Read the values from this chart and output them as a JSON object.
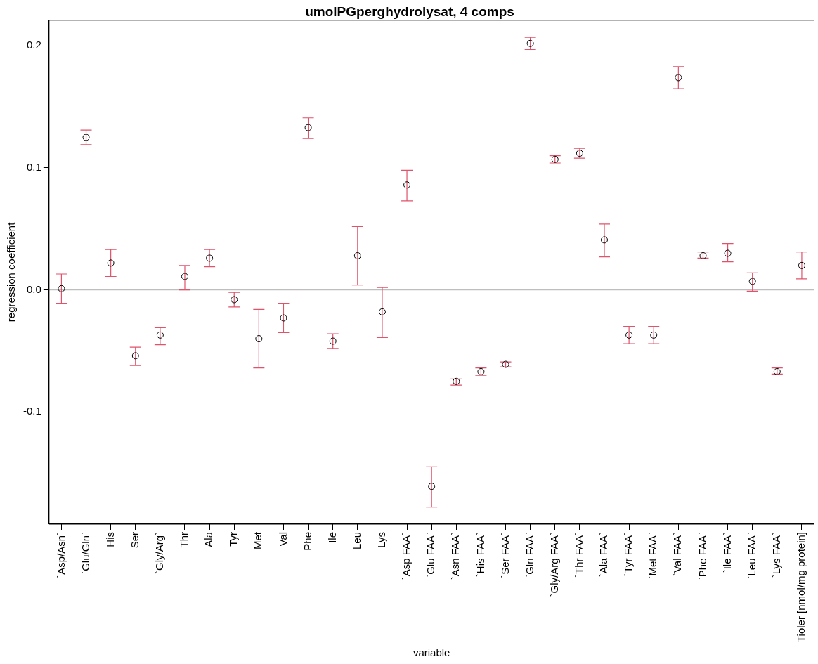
{
  "chart_data": {
    "type": "scatter",
    "title": "umolPGperghydrolysat, 4 comps",
    "xlabel": "variable",
    "ylabel": "regression coefficient",
    "categories": [
      "`Asp/Asn`",
      "`Glu/Gln`",
      "His",
      "Ser",
      "`Gly/Arg`",
      "Thr",
      "Ala",
      "Tyr",
      "Met",
      "Val",
      "Phe",
      "Ile",
      "Leu",
      "Lys",
      "`Asp FAA`",
      "`Glu FAA`",
      "`Asn FAA`",
      "`His FAA`",
      "`Ser FAA`",
      "`Gln FAA`",
      "`Gly/Arg FAA`",
      "`Thr FAA`",
      "`Ala FAA`",
      "`Tyr FAA`",
      "`Met FAA`",
      "`Val FAA`",
      "`Phe FAA`",
      "`Ile FAA`",
      "`Leu FAA`",
      "`Lys FAA`",
      "Tioler [nmol/mg protein]"
    ],
    "series": [
      {
        "color": "#000000",
        "values": [
          0.001,
          0.125,
          0.022,
          -0.054,
          -0.037,
          0.011,
          0.026,
          -0.008,
          -0.04,
          -0.023,
          0.133,
          -0.042,
          0.028,
          -0.018,
          0.086,
          -0.161,
          -0.075,
          -0.067,
          -0.061,
          0.202,
          0.107,
          0.112,
          0.041,
          -0.037,
          -0.037,
          0.174,
          0.028,
          0.03,
          0.007,
          -0.067,
          0.02
        ],
        "errors": [
          [
            -0.011,
            0.013
          ],
          [
            0.119,
            0.131
          ],
          [
            0.011,
            0.033
          ],
          [
            -0.062,
            -0.047
          ],
          [
            -0.045,
            -0.031
          ],
          [
            0.0,
            0.02
          ],
          [
            0.019,
            0.033
          ],
          [
            -0.014,
            -0.002
          ],
          [
            -0.064,
            -0.016
          ],
          [
            -0.035,
            -0.011
          ],
          [
            0.124,
            0.141
          ],
          [
            -0.048,
            -0.036
          ],
          [
            0.004,
            0.052
          ],
          [
            -0.039,
            0.002
          ],
          [
            0.073,
            0.098
          ],
          [
            -0.178,
            -0.145
          ],
          [
            -0.078,
            -0.073
          ],
          [
            -0.07,
            -0.064
          ],
          [
            -0.063,
            -0.059
          ],
          [
            0.197,
            0.207
          ],
          [
            0.104,
            0.11
          ],
          [
            0.108,
            0.116
          ],
          [
            0.027,
            0.054
          ],
          [
            -0.044,
            -0.03
          ],
          [
            -0.044,
            -0.03
          ],
          [
            0.165,
            0.183
          ],
          [
            0.026,
            0.031
          ],
          [
            0.023,
            0.038
          ],
          [
            -0.001,
            0.014
          ],
          [
            -0.069,
            -0.064
          ],
          [
            0.009,
            0.031
          ]
        ]
      }
    ],
    "ylim": [
      -0.192,
      0.221
    ],
    "yticks": [
      {
        "value": -0.1,
        "label": "-0.1"
      },
      {
        "value": 0,
        "label": "0.0"
      },
      {
        "value": 0.1,
        "label": "0.1"
      },
      {
        "value": 0.2,
        "label": "0.2"
      }
    ],
    "ref_lines": [
      {
        "axis": "y",
        "value": 0,
        "color": "#bebebe"
      }
    ],
    "marker": "circle",
    "grid": false,
    "legend": false
  }
}
